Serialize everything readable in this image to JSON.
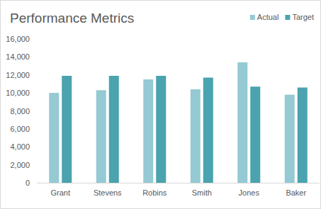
{
  "chart_data": {
    "type": "bar",
    "title": "Performance Metrics",
    "categories": [
      "Grant",
      "Stevens",
      "Robins",
      "Smith",
      "Jones",
      "Baker"
    ],
    "series": [
      {
        "name": "Actual",
        "color": "#95c9d3",
        "values": [
          10000,
          10300,
          11500,
          10400,
          13400,
          9800
        ]
      },
      {
        "name": "Target",
        "color": "#4aa3ae",
        "values": [
          11900,
          11900,
          11900,
          11700,
          10700,
          10600
        ]
      }
    ],
    "ylim": [
      0,
      16000
    ],
    "yticks": [
      0,
      {
        "value": 2000,
        "label": "2,000"
      },
      {
        "value": 4000,
        "label": "4,000"
      },
      {
        "value": 6000,
        "label": "6,000"
      },
      {
        "value": 8000,
        "label": "8,000"
      },
      {
        "value": 10000,
        "label": "10,000"
      },
      {
        "value": 12000,
        "label": "12,000"
      },
      {
        "value": 14000,
        "label": "14,000"
      },
      {
        "value": 16000,
        "label": "16,000"
      }
    ],
    "grid": false,
    "legend": "top-right"
  }
}
